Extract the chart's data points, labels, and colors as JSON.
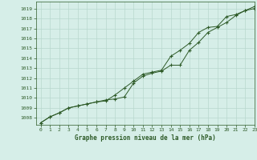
{
  "title": "Graphe pression niveau de la mer (hPa)",
  "xlim": [
    -0.5,
    23
  ],
  "ylim": [
    1007.3,
    1019.7
  ],
  "yticks": [
    1008,
    1009,
    1010,
    1011,
    1012,
    1013,
    1014,
    1015,
    1016,
    1017,
    1018,
    1019
  ],
  "xticks": [
    0,
    1,
    2,
    3,
    4,
    5,
    6,
    7,
    8,
    9,
    10,
    11,
    12,
    13,
    14,
    15,
    16,
    17,
    18,
    19,
    20,
    21,
    22,
    23
  ],
  "background_color": "#d6eee8",
  "grid_color": "#b8d8ce",
  "line_color": "#2d5a27",
  "line1_x": [
    0,
    1,
    2,
    3,
    4,
    5,
    6,
    7,
    8,
    9,
    10,
    11,
    12,
    13,
    14,
    15,
    16,
    17,
    18,
    19,
    20,
    21,
    22,
    23
  ],
  "line1_y": [
    1007.5,
    1008.1,
    1008.5,
    1009.0,
    1009.2,
    1009.4,
    1009.6,
    1009.8,
    1009.9,
    1010.1,
    1011.5,
    1012.2,
    1012.5,
    1012.7,
    1013.3,
    1013.3,
    1014.8,
    1015.6,
    1016.6,
    1017.1,
    1017.6,
    1018.3,
    1018.8,
    1019.2
  ],
  "line2_x": [
    0,
    1,
    2,
    3,
    4,
    5,
    6,
    7,
    8,
    9,
    10,
    11,
    12,
    13,
    14,
    15,
    16,
    17,
    18,
    19,
    20,
    21,
    22,
    23
  ],
  "line2_y": [
    1007.5,
    1008.1,
    1008.5,
    1009.0,
    1009.2,
    1009.4,
    1009.6,
    1009.7,
    1010.3,
    1011.0,
    1011.7,
    1012.4,
    1012.6,
    1012.8,
    1014.2,
    1014.8,
    1015.5,
    1016.6,
    1017.1,
    1017.2,
    1018.2,
    1018.4,
    1018.8,
    1019.0
  ]
}
